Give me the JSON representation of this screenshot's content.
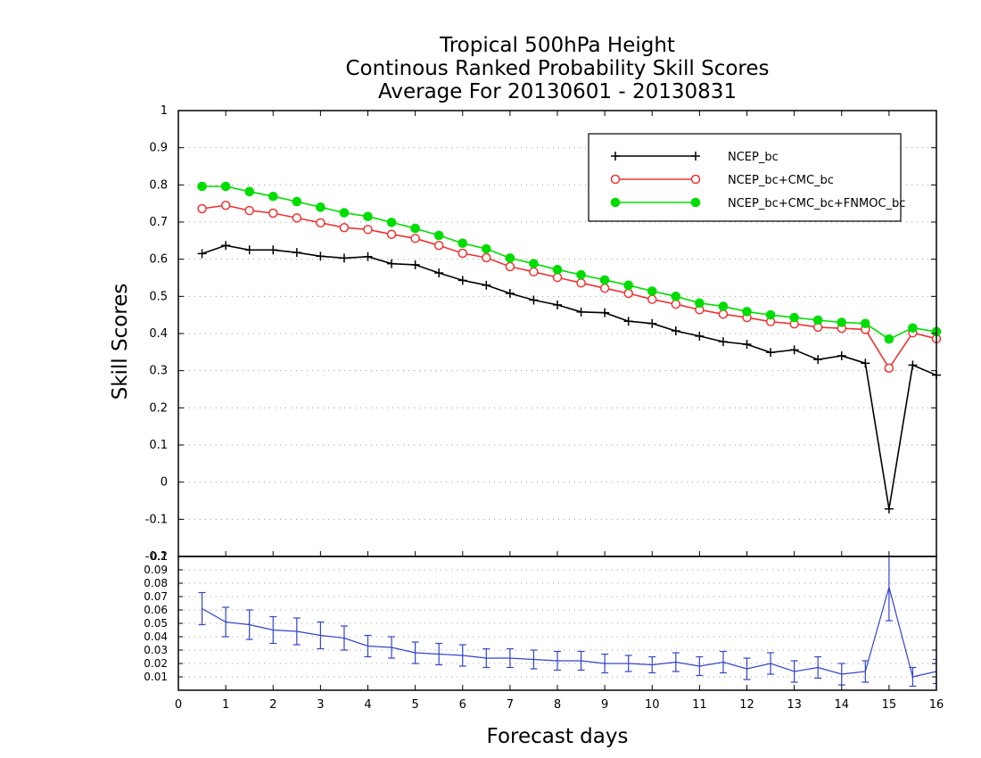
{
  "chart_data": [
    {
      "type": "line",
      "title": [
        "Tropical 500hPa Height",
        "Continous Ranked Probability Skill Scores",
        "Average For 20130601 - 20130831"
      ],
      "xlabel": "Forecast days",
      "ylabel": "Skill Scores",
      "xlim": [
        0,
        16
      ],
      "ylim": [
        -0.2,
        1
      ],
      "xticks": [
        "0",
        "1",
        "2",
        "3",
        "4",
        "5",
        "6",
        "7",
        "8",
        "9",
        "10",
        "11",
        "12",
        "13",
        "14",
        "15",
        "16"
      ],
      "yticks": [
        "-0.2",
        "-0.1",
        "0",
        "0.1",
        "0.2",
        "0.3",
        "0.4",
        "0.5",
        "0.6",
        "0.7",
        "0.8",
        "0.9",
        "1"
      ],
      "grid": true,
      "legend_position": "top-right",
      "x": [
        0.5,
        1,
        1.5,
        2,
        2.5,
        3,
        3.5,
        4,
        4.5,
        5,
        5.5,
        6,
        6.5,
        7,
        7.5,
        8,
        8.5,
        9,
        9.5,
        10,
        10.5,
        11,
        11.5,
        12,
        12.5,
        13,
        13.5,
        14,
        14.5,
        15,
        15.5,
        16
      ],
      "series": [
        {
          "name": "NCEP_bc",
          "color": "#000000",
          "marker": "plus",
          "values": [
            0.615,
            0.637,
            0.625,
            0.625,
            0.618,
            0.608,
            0.603,
            0.607,
            0.588,
            0.585,
            0.563,
            0.543,
            0.53,
            0.508,
            0.49,
            0.477,
            0.458,
            0.456,
            0.433,
            0.427,
            0.407,
            0.393,
            0.378,
            0.371,
            0.349,
            0.356,
            0.33,
            0.34,
            0.32,
            -0.072,
            0.315,
            0.288
          ]
        },
        {
          "name": "NCEP_bc+CMC_bc",
          "color": "#ee3333",
          "marker": "open-circle",
          "values": [
            0.736,
            0.745,
            0.731,
            0.724,
            0.711,
            0.698,
            0.685,
            0.68,
            0.667,
            0.656,
            0.637,
            0.616,
            0.604,
            0.58,
            0.566,
            0.551,
            0.536,
            0.522,
            0.508,
            0.492,
            0.479,
            0.464,
            0.452,
            0.443,
            0.432,
            0.426,
            0.417,
            0.414,
            0.411,
            0.307,
            0.402,
            0.386
          ]
        },
        {
          "name": "NCEP_bc+CMC_bc+FNMOC_bc",
          "color": "#00dd00",
          "marker": "filled-circle",
          "values": [
            0.796,
            0.796,
            0.782,
            0.769,
            0.755,
            0.74,
            0.725,
            0.715,
            0.699,
            0.683,
            0.664,
            0.643,
            0.628,
            0.603,
            0.588,
            0.572,
            0.558,
            0.544,
            0.53,
            0.514,
            0.5,
            0.482,
            0.473,
            0.459,
            0.45,
            0.443,
            0.436,
            0.43,
            0.427,
            0.385,
            0.415,
            0.405
          ]
        }
      ]
    },
    {
      "type": "line",
      "xlim": [
        0,
        16
      ],
      "ylim": [
        0,
        0.1
      ],
      "yticks": [
        "0.01",
        "0.02",
        "0.03",
        "0.04",
        "0.05",
        "0.06",
        "0.07",
        "0.08",
        "0.09",
        "0.1"
      ],
      "grid": true,
      "color": "#3344cc",
      "x": [
        0.5,
        1,
        1.5,
        2,
        2.5,
        3,
        3.5,
        4,
        4.5,
        5,
        5.5,
        6,
        6.5,
        7,
        7.5,
        8,
        8.5,
        9,
        9.5,
        10,
        10.5,
        11,
        11.5,
        12,
        12.5,
        13,
        13.5,
        14,
        14.5,
        15,
        15.5,
        16
      ],
      "values": [
        0.061,
        0.051,
        0.049,
        0.045,
        0.044,
        0.041,
        0.039,
        0.033,
        0.032,
        0.028,
        0.027,
        0.026,
        0.024,
        0.024,
        0.023,
        0.022,
        0.022,
        0.02,
        0.02,
        0.019,
        0.021,
        0.018,
        0.021,
        0.016,
        0.02,
        0.014,
        0.017,
        0.012,
        0.014,
        0.077,
        0.01,
        0.014
      ],
      "error": [
        0.012,
        0.011,
        0.011,
        0.01,
        0.01,
        0.01,
        0.009,
        0.008,
        0.008,
        0.008,
        0.008,
        0.008,
        0.007,
        0.007,
        0.007,
        0.007,
        0.007,
        0.007,
        0.006,
        0.006,
        0.007,
        0.007,
        0.008,
        0.008,
        0.008,
        0.008,
        0.008,
        0.008,
        0.008,
        0.025,
        0.007,
        0.009
      ]
    }
  ]
}
